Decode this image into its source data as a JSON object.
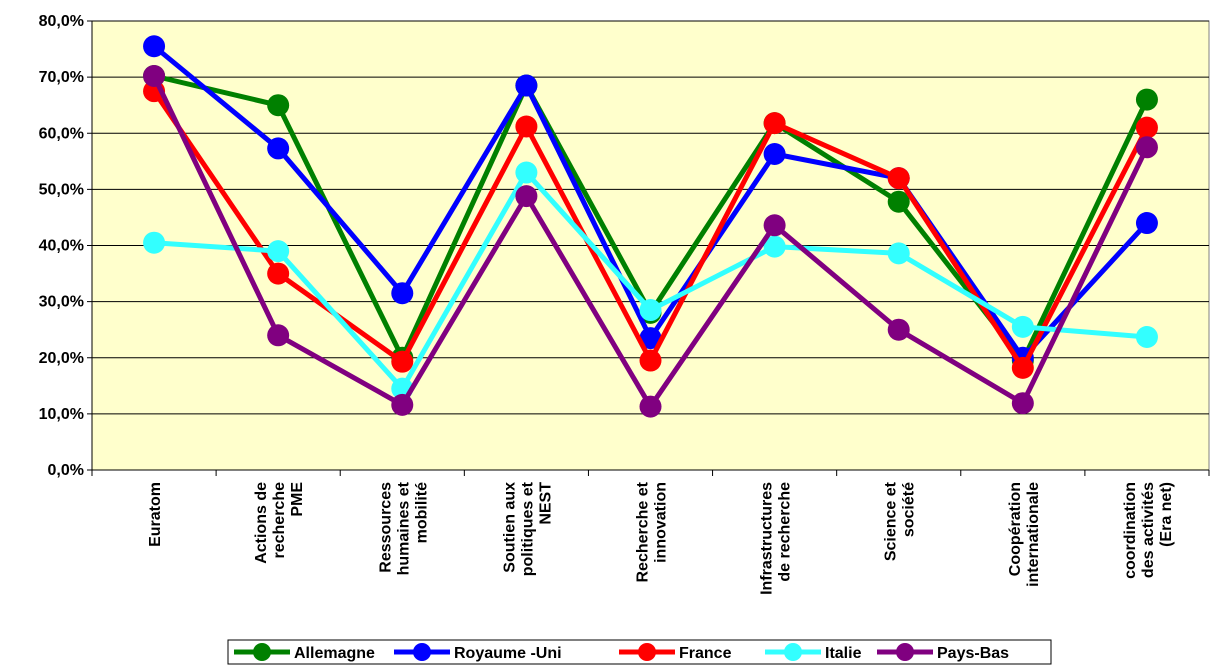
{
  "chart_data": {
    "type": "line",
    "title": "",
    "xlabel": "",
    "ylabel": "",
    "ylim": [
      0,
      80
    ],
    "y_tick_values": [
      0,
      10,
      20,
      30,
      40,
      50,
      60,
      70,
      80
    ],
    "y_tick_labels": [
      "0,0%",
      "10,0%",
      "20,0%",
      "30,0%",
      "40,0%",
      "50,0%",
      "60,0%",
      "70,0%",
      "80,0%"
    ],
    "grid": true,
    "legend_position": "bottom",
    "plot_background": "#ffffcc",
    "categories": [
      [
        "Euratom"
      ],
      [
        "Actions de",
        "recherche",
        "PME"
      ],
      [
        "Ressources",
        "humaines  et",
        "mobilité"
      ],
      [
        "Soutien aux",
        "politiques et",
        "NEST"
      ],
      [
        "Recherche et",
        "innovation"
      ],
      [
        "Infrastructures",
        "de recherche"
      ],
      [
        "Science et",
        "société"
      ],
      [
        "Coopération",
        "internationale"
      ],
      [
        "coordination",
        "des activités",
        "(Era net)"
      ]
    ],
    "series": [
      {
        "name": "Allemagne",
        "color": "#008000",
        "values": [
          70.2,
          65.0,
          20.0,
          68.5,
          28.0,
          61.8,
          47.8,
          19.5,
          66.0
        ]
      },
      {
        "name": "Royaume -Uni",
        "color": "#0000ff",
        "values": [
          75.5,
          57.3,
          31.5,
          68.5,
          23.5,
          56.3,
          52.0,
          20.0,
          44.0
        ]
      },
      {
        "name": "France",
        "color": "#ff0000",
        "values": [
          67.5,
          35.0,
          19.3,
          61.2,
          19.5,
          61.8,
          52.0,
          18.2,
          61.0
        ]
      },
      {
        "name": "Italie",
        "color": "#33ffff",
        "values": [
          40.5,
          39.0,
          14.5,
          53.0,
          28.5,
          39.8,
          38.6,
          25.5,
          23.7
        ]
      },
      {
        "name": "Pays-Bas",
        "color": "#800080",
        "values": [
          70.2,
          24.0,
          11.6,
          48.8,
          11.3,
          43.6,
          25.0,
          11.9,
          57.5
        ]
      }
    ]
  }
}
